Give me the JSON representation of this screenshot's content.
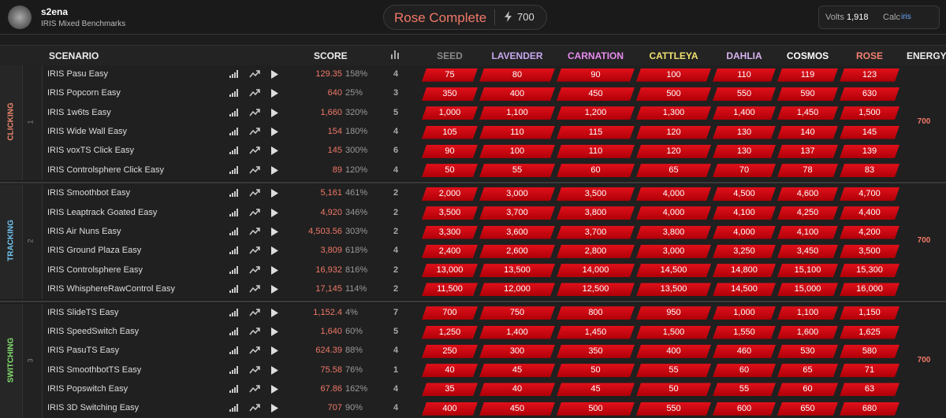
{
  "header": {
    "user": "s2ena",
    "subtitle": "IRIS Mixed Benchmarks",
    "rank": "Rose Complete",
    "energy": "700",
    "volts_label": "Volts",
    "volts": "1,918",
    "calc_label": "Calc",
    "calc": "iris"
  },
  "table": {
    "columns": {
      "scenario": "SCENARIO",
      "score": "SCORE",
      "ranks": [
        "SEED",
        "LAVENDER",
        "CARNATION",
        "CATTLEYA",
        "DAHLIA",
        "COSMOS",
        "ROSE"
      ],
      "energy": "ENERGY"
    },
    "groups": [
      {
        "name": "CLICKING",
        "number": "1",
        "energy": "700",
        "rows": [
          {
            "name": "IRIS Pasu Easy",
            "score": "129.35",
            "pct": "158%",
            "count": "4",
            "thresholds": [
              "75",
              "80",
              "90",
              "100",
              "110",
              "119",
              "123"
            ]
          },
          {
            "name": "IRIS Popcorn Easy",
            "score": "640",
            "pct": "25%",
            "count": "3",
            "thresholds": [
              "350",
              "400",
              "450",
              "500",
              "550",
              "590",
              "630"
            ]
          },
          {
            "name": "IRIS 1w6ts Easy",
            "score": "1,660",
            "pct": "320%",
            "count": "5",
            "thresholds": [
              "1,000",
              "1,100",
              "1,200",
              "1,300",
              "1,400",
              "1,450",
              "1,500"
            ]
          },
          {
            "name": "IRIS Wide Wall Easy",
            "score": "154",
            "pct": "180%",
            "count": "4",
            "thresholds": [
              "105",
              "110",
              "115",
              "120",
              "130",
              "140",
              "145"
            ]
          },
          {
            "name": "IRIS voxTS Click Easy",
            "score": "145",
            "pct": "300%",
            "count": "6",
            "thresholds": [
              "90",
              "100",
              "110",
              "120",
              "130",
              "137",
              "139"
            ]
          },
          {
            "name": "IRIS Controlsphere Click Easy",
            "score": "89",
            "pct": "120%",
            "count": "4",
            "thresholds": [
              "50",
              "55",
              "60",
              "65",
              "70",
              "78",
              "83"
            ]
          }
        ]
      },
      {
        "name": "TRACKING",
        "number": "2",
        "energy": "700",
        "rows": [
          {
            "name": "IRIS Smoothbot Easy",
            "score": "5,161",
            "pct": "461%",
            "count": "2",
            "thresholds": [
              "2,000",
              "3,000",
              "3,500",
              "4,000",
              "4,500",
              "4,600",
              "4,700"
            ]
          },
          {
            "name": "IRIS Leaptrack Goated Easy",
            "score": "4,920",
            "pct": "346%",
            "count": "2",
            "thresholds": [
              "3,500",
              "3,700",
              "3,800",
              "4,000",
              "4,100",
              "4,250",
              "4,400"
            ]
          },
          {
            "name": "IRIS Air Nuns Easy",
            "score": "4,503.56",
            "pct": "303%",
            "count": "2",
            "thresholds": [
              "3,300",
              "3,600",
              "3,700",
              "3,800",
              "4,000",
              "4,100",
              "4,200"
            ]
          },
          {
            "name": "IRIS Ground Plaza Easy",
            "score": "3,809",
            "pct": "618%",
            "count": "4",
            "thresholds": [
              "2,400",
              "2,600",
              "2,800",
              "3,000",
              "3,250",
              "3,450",
              "3,500"
            ]
          },
          {
            "name": "IRIS Controlsphere Easy",
            "score": "16,932",
            "pct": "816%",
            "count": "2",
            "thresholds": [
              "13,000",
              "13,500",
              "14,000",
              "14,500",
              "14,800",
              "15,100",
              "15,300"
            ]
          },
          {
            "name": "IRIS WhisphereRawControl Easy",
            "score": "17,145",
            "pct": "114%",
            "count": "2",
            "thresholds": [
              "11,500",
              "12,000",
              "12,500",
              "13,500",
              "14,500",
              "15,000",
              "16,000"
            ]
          }
        ]
      },
      {
        "name": "SWITCHING",
        "number": "3",
        "energy": "700",
        "rows": [
          {
            "name": "IRIS SlideTS Easy",
            "score": "1,152.4",
            "pct": "4%",
            "count": "7",
            "thresholds": [
              "700",
              "750",
              "800",
              "950",
              "1,000",
              "1,100",
              "1,150"
            ]
          },
          {
            "name": "IRIS SpeedSwitch Easy",
            "score": "1,640",
            "pct": "60%",
            "count": "5",
            "thresholds": [
              "1,250",
              "1,400",
              "1,450",
              "1,500",
              "1,550",
              "1,600",
              "1,625"
            ]
          },
          {
            "name": "IRIS PasuTS Easy",
            "score": "624.39",
            "pct": "88%",
            "count": "4",
            "thresholds": [
              "250",
              "300",
              "350",
              "400",
              "460",
              "530",
              "580"
            ]
          },
          {
            "name": "IRIS SmoothbotTS Easy",
            "score": "75.58",
            "pct": "76%",
            "count": "1",
            "thresholds": [
              "40",
              "45",
              "50",
              "55",
              "60",
              "65",
              "71"
            ]
          },
          {
            "name": "IRIS Popswitch Easy",
            "score": "67.86",
            "pct": "162%",
            "count": "4",
            "thresholds": [
              "35",
              "40",
              "45",
              "50",
              "55",
              "60",
              "63"
            ]
          },
          {
            "name": "IRIS 3D Switching Easy",
            "score": "707",
            "pct": "90%",
            "count": "4",
            "thresholds": [
              "400",
              "450",
              "500",
              "550",
              "600",
              "650",
              "680"
            ]
          }
        ]
      }
    ]
  }
}
